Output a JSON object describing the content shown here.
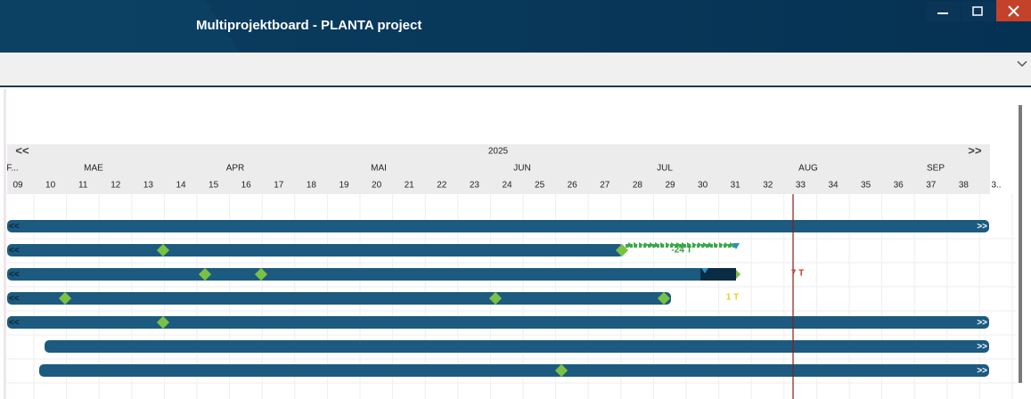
{
  "window": {
    "title": "Multiprojektboard - PLANTA project"
  },
  "timeline": {
    "year": "2025",
    "nav_prev": "<<",
    "nav_next": ">>",
    "months": [
      "F...",
      "MAE",
      "APR",
      "MAI",
      "JUN",
      "JUL",
      "AUG",
      "SEP"
    ],
    "weeks": [
      "09",
      "10",
      "11",
      "12",
      "13",
      "14",
      "15",
      "16",
      "17",
      "18",
      "19",
      "20",
      "21",
      "22",
      "23",
      "24",
      "25",
      "26",
      "27",
      "28",
      "29",
      "30",
      "31",
      "32",
      "33",
      "34",
      "35",
      "36",
      "37",
      "38",
      "3.."
    ]
  },
  "bar_markers": {
    "left": "<<",
    "right": ">>"
  },
  "annotations": [
    "-24 T",
    "7 T",
    "1 T"
  ]
}
